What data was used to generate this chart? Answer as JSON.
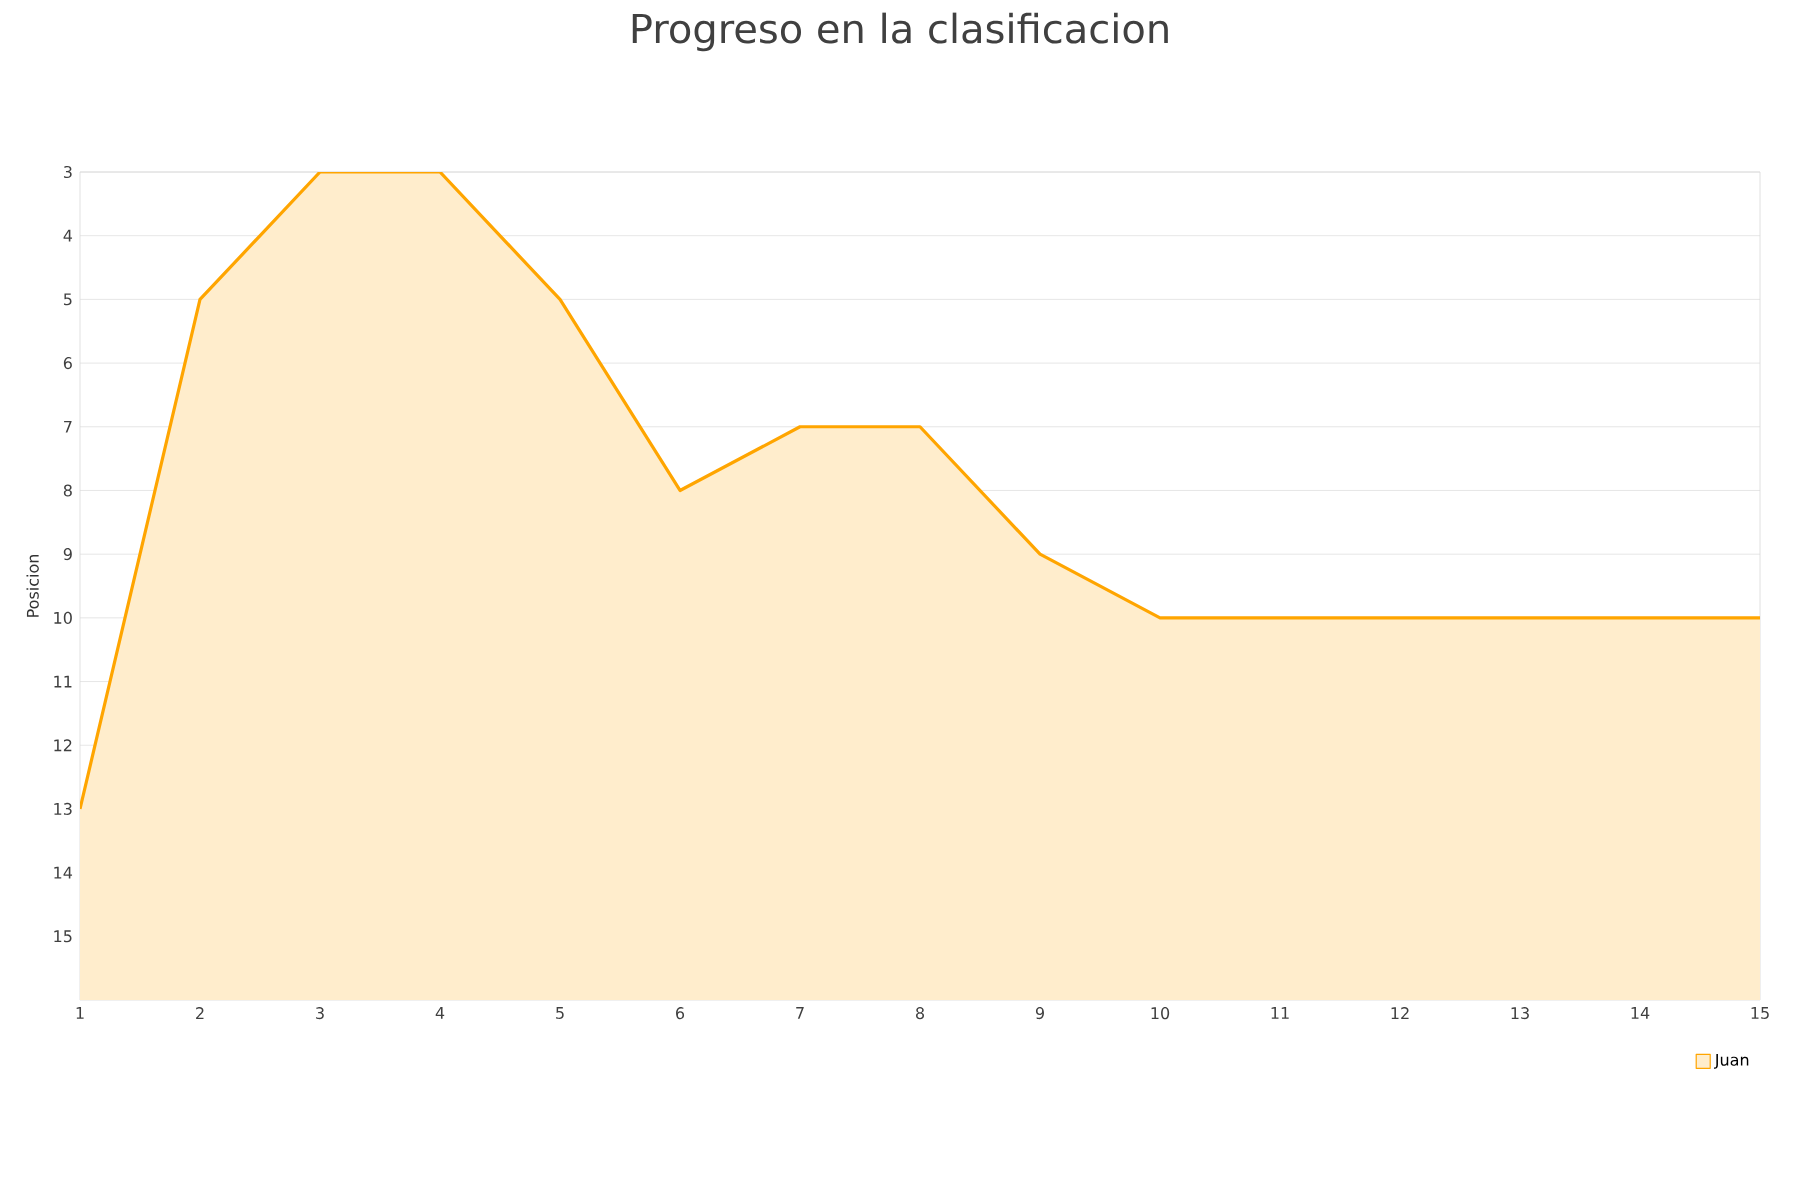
{
  "chart_data": {
    "type": "area",
    "title": "Progreso en la clasificacion",
    "ylabel": "Posicion",
    "x": [
      1,
      2,
      3,
      4,
      5,
      6,
      7,
      8,
      9,
      10,
      11,
      12,
      13,
      14,
      15
    ],
    "series": [
      {
        "name": "Juan",
        "color": "#ffa500",
        "values": [
          13,
          5,
          3,
          3,
          5,
          8,
          7,
          7,
          9,
          10,
          10,
          10,
          10,
          10,
          10
        ]
      }
    ],
    "xlim": [
      1,
      15
    ],
    "xticks": [
      1,
      2,
      3,
      4,
      5,
      6,
      7,
      8,
      9,
      10,
      11,
      12,
      13,
      14,
      15
    ],
    "ylim": [
      16,
      3
    ],
    "yticks": [
      3,
      4,
      5,
      6,
      7,
      8,
      9,
      10,
      11,
      12,
      13,
      14,
      15
    ],
    "grid": "y",
    "legend": "bottom right",
    "marker": "none",
    "line_style": "solid"
  }
}
